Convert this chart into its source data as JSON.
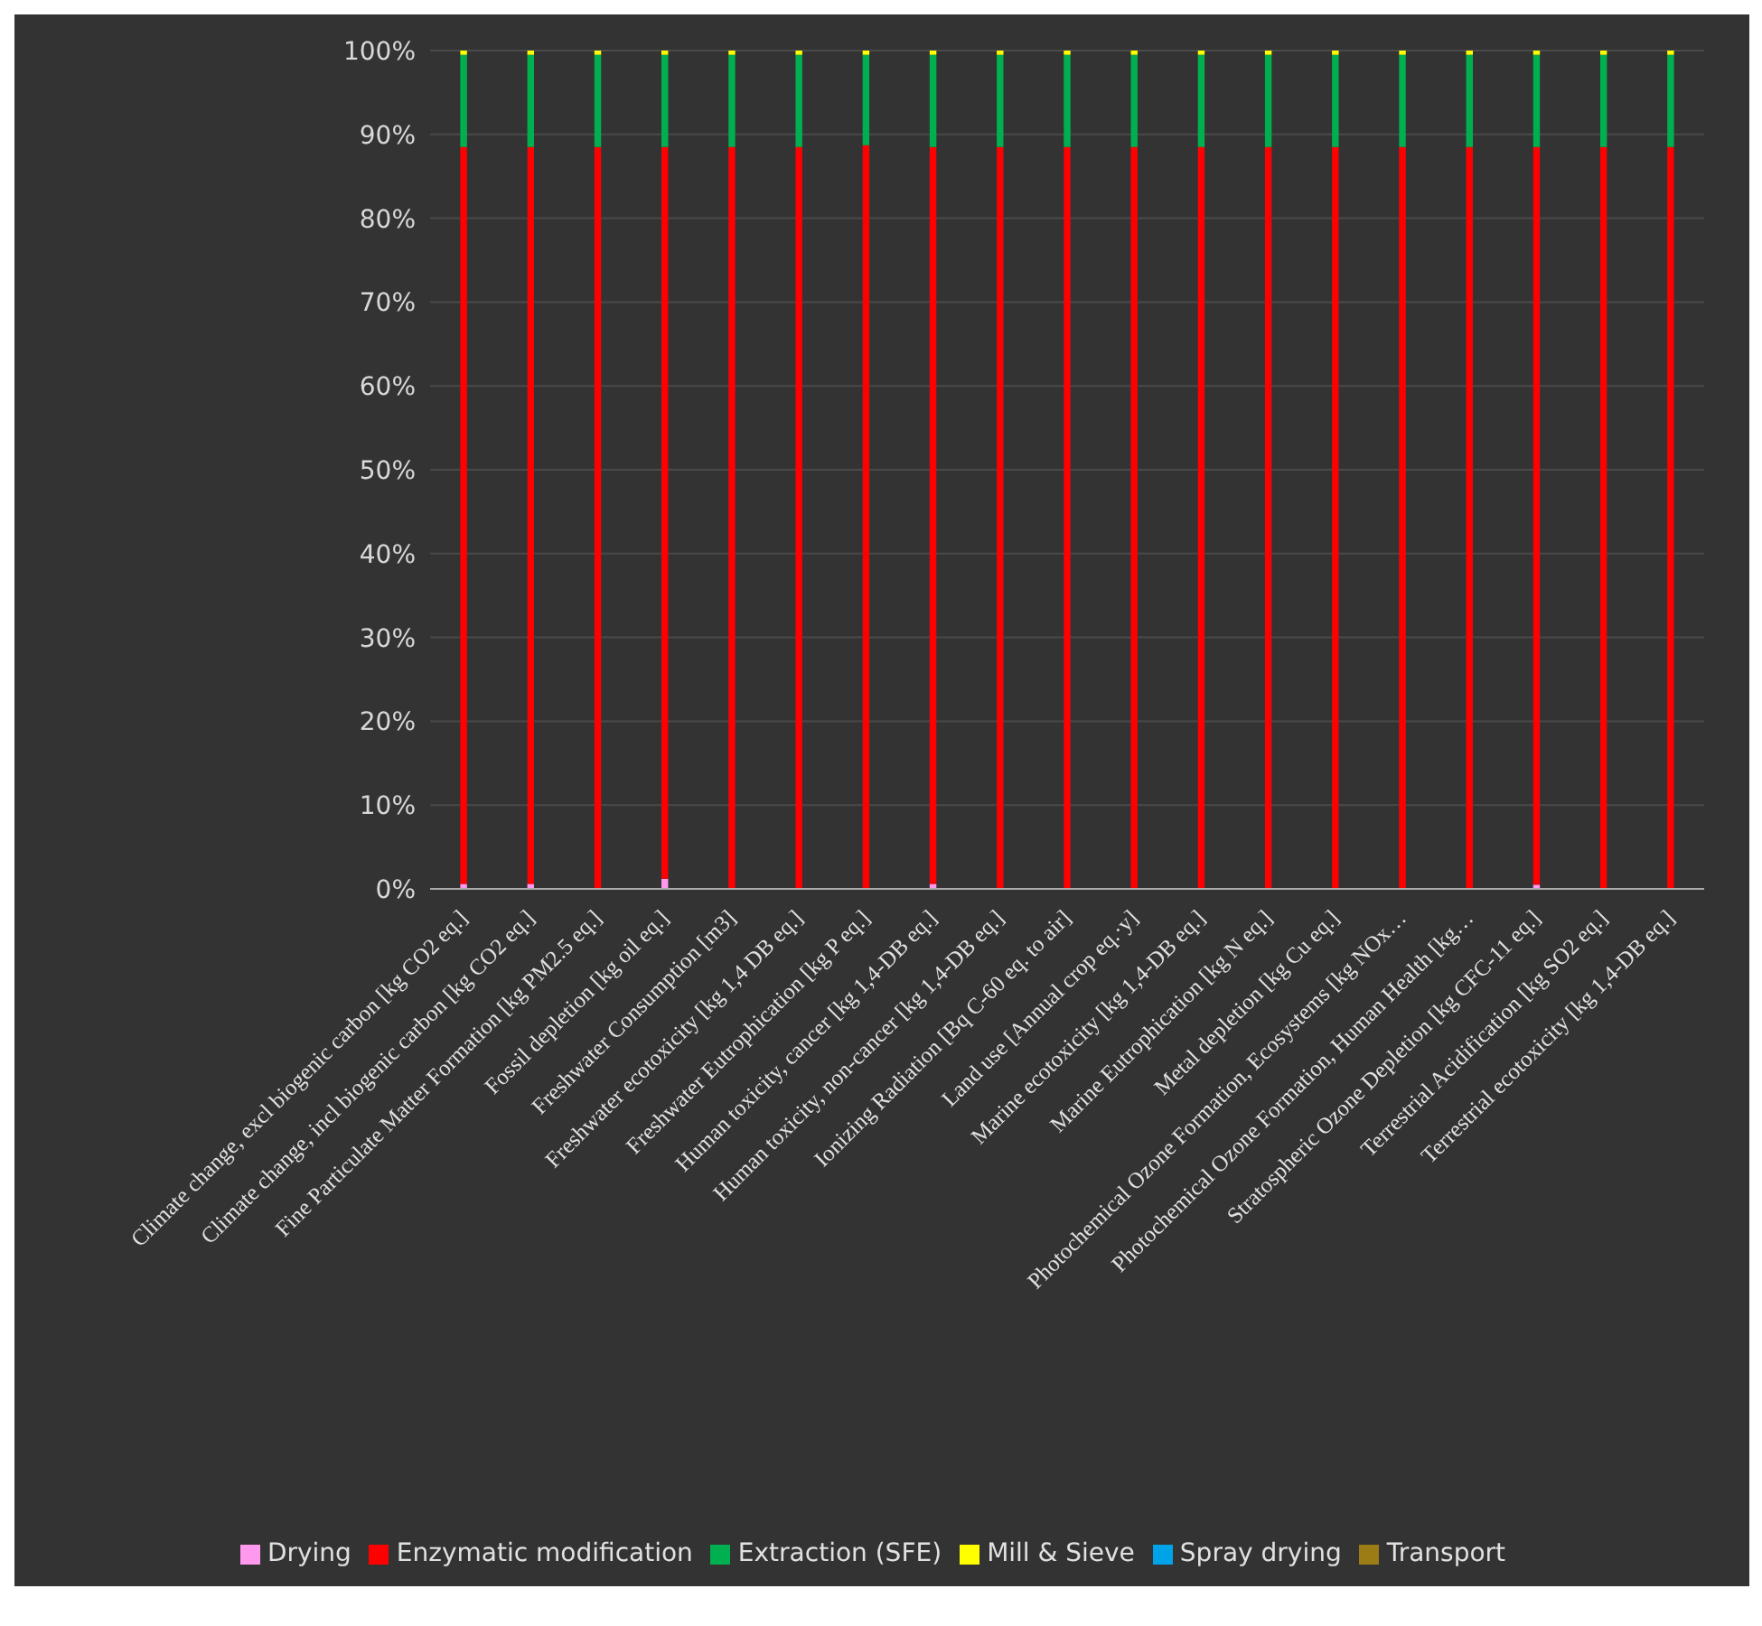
{
  "chart_data": {
    "type": "bar",
    "stacked": true,
    "categories": [
      "Climate change, excl biogenic carbon [kg CO2 eq.]",
      "Climate change, incl biogenic carbon [kg CO2 eq.]",
      "Fine Particulate Matter Formation [kg PM2.5 eq.]",
      "Fossil depletion [kg oil eq.]",
      "Freshwater Consumption [m3]",
      "Freshwater ecotoxicity [kg 1,4 DB eq.]",
      "Freshwater Eutrophication [kg P eq.]",
      "Human toxicity, cancer [kg 1,4-DB eq.]",
      "Human toxicity, non-cancer [kg 1,4-DB eq.]",
      "Ionizing Radiation [Bq C-60 eq. to air]",
      "Land use [Annual crop eq.·y]",
      "Marine ecotoxicity [kg 1,4-DB eq.]",
      "Marine Eutrophication [kg N eq.]",
      "Metal depletion [kg Cu eq.]",
      "Photochemical Ozone Formation, Ecosystems [kg NOx…",
      "Photochemical Ozone Formation, Human Health [kg…",
      "Stratospheric Ozone Depletion [kg CFC-11 eq.]",
      "Terrestrial Acidification [kg SO2 eq.]",
      "Terrestrial ecotoxicity [kg 1,4-DB eq.]"
    ],
    "series": [
      {
        "name": "Drying",
        "color": "#ff99ee",
        "values": [
          0.6,
          0.6,
          0,
          1.2,
          0,
          0,
          0,
          0.6,
          0,
          0,
          0,
          0,
          0,
          0,
          0,
          0,
          0.5,
          0,
          0
        ]
      },
      {
        "name": "Enzymatic modification",
        "color": "#ff0000",
        "values": [
          87.9,
          87.9,
          88.5,
          87.3,
          88.5,
          88.5,
          88.7,
          87.9,
          88.5,
          88.5,
          88.5,
          88.5,
          88.5,
          88.5,
          88.5,
          88.5,
          88,
          88.5,
          88.5
        ]
      },
      {
        "name": "Extraction (SFE)",
        "color": "#00b050",
        "values": [
          11,
          11,
          11,
          11,
          11,
          11,
          10.8,
          11,
          11,
          11,
          11,
          11,
          11,
          11,
          11,
          11,
          11,
          11,
          11
        ]
      },
      {
        "name": "Mill & Sieve",
        "color": "#ffff00",
        "values": [
          0.5,
          0.5,
          0.5,
          0.5,
          0.5,
          0.5,
          0.5,
          0.5,
          0.5,
          0.5,
          0.5,
          0.5,
          0.5,
          0.5,
          0.5,
          0.5,
          0.5,
          0.5,
          0.5
        ]
      },
      {
        "name": "Transport",
        "color": "#9c7c14",
        "values": [
          0,
          0,
          0,
          0,
          0,
          0,
          0,
          0,
          0,
          0,
          0,
          0,
          0,
          0,
          0,
          0,
          0,
          0,
          0
        ]
      },
      {
        "name": "Spray drying",
        "color": "#00a2e8",
        "values": [
          0,
          0,
          0,
          0,
          0,
          0,
          0,
          0,
          0,
          0,
          0,
          0,
          0,
          0,
          0,
          0,
          0,
          0,
          0
        ]
      }
    ],
    "ylim": [
      0,
      100
    ],
    "yticks": [
      {
        "value": 0,
        "label": "0%"
      },
      {
        "value": 10,
        "label": "10%"
      },
      {
        "value": 20,
        "label": "20%"
      },
      {
        "value": 30,
        "label": "30%"
      },
      {
        "value": 40,
        "label": "40%"
      },
      {
        "value": 50,
        "label": "50%"
      },
      {
        "value": 60,
        "label": "60%"
      },
      {
        "value": 70,
        "label": "70%"
      },
      {
        "value": 80,
        "label": "80%"
      },
      {
        "value": 90,
        "label": "90%"
      },
      {
        "value": 100,
        "label": "100%"
      }
    ],
    "grid": "y",
    "legend": "bottom"
  }
}
